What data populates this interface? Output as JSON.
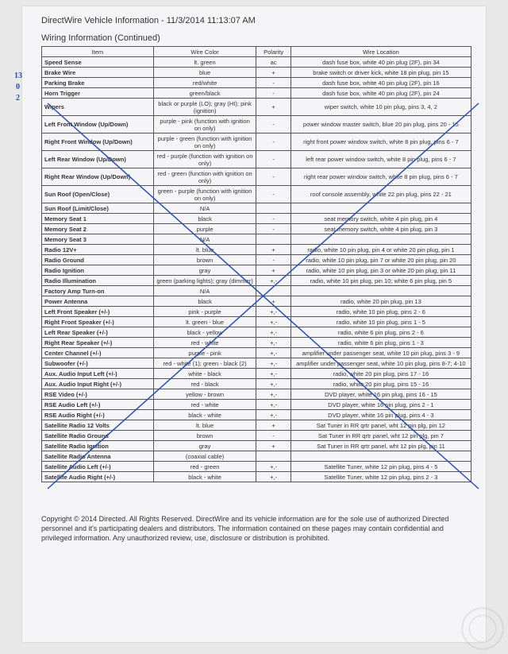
{
  "header": "DirectWire Vehicle Information - 11/3/2014 11:13:07 AM",
  "subheader": "Wiring Information (Continued)",
  "columns": [
    "Item",
    "Wire Color",
    "Polarity",
    "Wire Location"
  ],
  "rows": [
    [
      "Speed Sense",
      "lt. green",
      "ac",
      "dash fuse box, white 40 pin plug (2F), pin 34"
    ],
    [
      "Brake Wire",
      "blue",
      "+",
      "brake switch or driver kick, white 18 pin plug, pin 15"
    ],
    [
      "Parking Brake",
      "red/white",
      "-",
      "dash fuse box, white 40 pin plug (2F), pin 16"
    ],
    [
      "Horn Trigger",
      "green/black",
      "-",
      "dash fuse box, white 40 pin plug (2F), pin 24"
    ],
    [
      "Wipers",
      "black or purple (LO); gray (HI); pink (ignition)",
      "+",
      "wiper switch, white 10 pin plug, pins 3, 4, 2"
    ],
    [
      "Left Front Window (Up/Down)",
      "purple - pink (function with ignition on only)",
      "-",
      "power window master switch, blue 20 pin plug, pins 20 - 15"
    ],
    [
      "Right Front Window (Up/Down)",
      "purple - green (function with ignition on only)",
      "-",
      "right front power window switch, white 8 pin plug, pins 6 - 7"
    ],
    [
      "Left Rear Window (Up/Down)",
      "red - purple (function with ignition on only)",
      "-",
      "left rear power window switch, white 8 pin plug, pins 6 - 7"
    ],
    [
      "Right Rear Window (Up/Down)",
      "red - green (function with ignition on only)",
      "-",
      "right rear power window switch, white 8 pin plug, pins 6 - 7"
    ],
    [
      "Sun Roof (Open/Close)",
      "green - purple (function with ignition on only)",
      "-",
      "roof console assembly, white 22 pin plug, pins 22 - 21"
    ],
    [
      "Sun Roof (Limit/Close)",
      "N/A",
      "",
      ""
    ],
    [
      "Memory Seat 1",
      "black",
      "-",
      "seat memory switch, white 4 pin plug, pin 4"
    ],
    [
      "Memory Seat 2",
      "purple",
      "-",
      "seat memory switch, white 4 pin plug, pin 3"
    ],
    [
      "Memory Seat 3",
      "N/A",
      "",
      ""
    ],
    [
      "Radio 12V+",
      "lt. blue",
      "+",
      "radio, white 10 pin plug, pin 4 or white 20 pin plug, pin 1"
    ],
    [
      "Radio Ground",
      "brown",
      "-",
      "radio, white 10 pin plug, pin 7 or white 20 pin plug, pin 20"
    ],
    [
      "Radio Ignition",
      "gray",
      "+",
      "radio, white 10 pin plug, pin 3 or white 20 pin plug, pin 11"
    ],
    [
      "Radio Illumination",
      "green (parking lights); gray (dimmer)",
      "+,-",
      "radio, white 10 pin plug, pin 10; white 6 pin plug, pin 5"
    ],
    [
      "Factory Amp Turn-on",
      "N/A",
      "",
      ""
    ],
    [
      "Power Antenna",
      "black",
      "+",
      "radio, white 20 pin plug, pin 13"
    ],
    [
      "Left Front Speaker (+/-)",
      "pink - purple",
      "+,-",
      "radio, white 10 pin plug, pins 2 - 6"
    ],
    [
      "Right Front Speaker (+/-)",
      "lt. green - blue",
      "+,-",
      "radio, white 10 pin plug, pins 1 - 5"
    ],
    [
      "Left Rear Speaker (+/-)",
      "black - yellow",
      "+,-",
      "radio, white 6 pin plug, pins 2 - 6"
    ],
    [
      "Right Rear Speaker (+/-)",
      "red - white",
      "+,-",
      "radio, white 6 pin plug, pins 1 - 3"
    ],
    [
      "Center Channel (+/-)",
      "purple - pink",
      "+,-",
      "amplifier under passenger seat, white 10 pin plug, pins 3 - 9"
    ],
    [
      "Subwoofer (+/-)",
      "red - white (1); green - black (2)",
      "+,-",
      "amplifier under passenger seat, white 10 pin plug, pins 8-7; 4-10"
    ],
    [
      "Aux. Audio Input Left (+/-)",
      "white - black",
      "+,-",
      "radio, white 20 pin plug, pins 17 - 16"
    ],
    [
      "Aux. Audio Input Right (+/-)",
      "red - black",
      "+,-",
      "radio, white 20 pin plug, pins 15 - 16"
    ],
    [
      "RSE Video (+/-)",
      "yellow - brown",
      "+,-",
      "DVD player, white 16 pin plug, pins 16 - 15"
    ],
    [
      "RSE Audio Left (+/-)",
      "red - white",
      "+,-",
      "DVD player, white 16 pin plug, pins 2 - 1"
    ],
    [
      "RSE Audio Right (+/-)",
      "black - white",
      "+,-",
      "DVD player, white 16 pin plug, pins 4 - 3"
    ],
    [
      "Satellite Radio 12 Volts",
      "lt. blue",
      "+",
      "Sat Tuner in RR qrtr panel, wht 12 pin plg, pin 12"
    ],
    [
      "Satellite Radio Ground",
      "brown",
      "-",
      "Sat Tuner in RR qrtr panel, wht 12 pin plg, pin 7"
    ],
    [
      "Satellite Radio Ignition",
      "gray",
      "+",
      "Sat Tuner in RR qrtr panel, wht 12 pin plg, pin 11"
    ],
    [
      "Satellite Radio Antenna",
      "(coaxial cable)",
      "",
      ""
    ],
    [
      "Satellite Audio Left (+/-)",
      "red - green",
      "+,-",
      "Satellite Tuner, white 12 pin plug, pins 4 - 5"
    ],
    [
      "Satellite Audio Right (+/-)",
      "black - white",
      "+,-",
      "Satellite Tuner, white 12 pin plug, pins 2 - 3"
    ]
  ],
  "copyright": "Copyright © 2014 Directed. All Rights Reserved. DirectWire and its vehicle information are for the sole use of authorized Directed personnel and it's participating dealers and distributors. The information contained on these pages may contain confidential and privileged information. Any unauthorized review, use, disclosure or distribution is prohibited.",
  "annotations": {
    "n13": "13",
    "n0": "0",
    "n2": "2"
  }
}
